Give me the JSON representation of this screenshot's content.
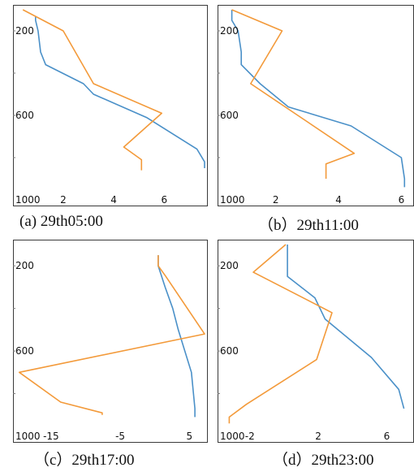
{
  "colors": {
    "blue": "#4a90c8",
    "orange": "#f39a3a",
    "frame": "#3a3a3a",
    "tickmark": "#777777"
  },
  "chart_data": [
    {
      "type": "line",
      "caption": "(a) 29th05:00",
      "ylim": [
        1000,
        100
      ],
      "xlim": [
        0.2,
        7.6
      ],
      "y_ticks": [
        200,
        600,
        1000
      ],
      "x_ticks": [
        2,
        4,
        6
      ],
      "series": [
        {
          "color": "blue",
          "points": [
            [
              0.9,
              130
            ],
            [
              0.9,
              150
            ],
            [
              1.0,
              200
            ],
            [
              1.1,
              300
            ],
            [
              1.3,
              360
            ],
            [
              2.8,
              450
            ],
            [
              3.2,
              500
            ],
            [
              5.3,
              610
            ],
            [
              7.3,
              760
            ],
            [
              7.6,
              820
            ],
            [
              7.6,
              850
            ]
          ]
        },
        {
          "color": "orange",
          "points": [
            [
              0.4,
              100
            ],
            [
              2.0,
              200
            ],
            [
              3.2,
              450
            ],
            [
              5.9,
              590
            ],
            [
              4.4,
              750
            ],
            [
              5.1,
              810
            ],
            [
              5.1,
              860
            ]
          ]
        }
      ]
    },
    {
      "type": "line",
      "caption": "（b）29th11:00",
      "ylim": [
        1000,
        100
      ],
      "xlim": [
        0.3,
        6.3
      ],
      "y_ticks": [
        200,
        600,
        1000
      ],
      "x_ticks": [
        2,
        4,
        6
      ],
      "series": [
        {
          "color": "blue",
          "points": [
            [
              0.6,
              100
            ],
            [
              0.6,
              150
            ],
            [
              0.8,
              200
            ],
            [
              0.9,
              300
            ],
            [
              0.9,
              360
            ],
            [
              1.5,
              450
            ],
            [
              2.4,
              560
            ],
            [
              4.4,
              650
            ],
            [
              6.0,
              800
            ],
            [
              6.1,
              900
            ],
            [
              6.1,
              940
            ]
          ]
        },
        {
          "color": "orange",
          "points": [
            [
              0.6,
              100
            ],
            [
              2.2,
              200
            ],
            [
              1.2,
              450
            ],
            [
              2.7,
              600
            ],
            [
              4.5,
              780
            ],
            [
              3.6,
              830
            ],
            [
              3.6,
              900
            ]
          ]
        }
      ]
    },
    {
      "type": "line",
      "caption": "（c）29th17:00",
      "ylim": [
        1000,
        100
      ],
      "xlim": [
        -19.8,
        7.2
      ],
      "y_ticks": [
        200,
        600,
        1000
      ],
      "x_ticks": [
        -15,
        -5,
        5
      ],
      "series": [
        {
          "color": "blue",
          "points": [
            [
              0.5,
              150
            ],
            [
              0.5,
              200
            ],
            [
              1.5,
              300
            ],
            [
              2.6,
              400
            ],
            [
              3.4,
              500
            ],
            [
              5.3,
              700
            ],
            [
              5.8,
              870
            ],
            [
              5.8,
              910
            ]
          ]
        },
        {
          "color": "orange",
          "points": [
            [
              0.5,
              150
            ],
            [
              0.5,
              200
            ],
            [
              1.6,
              250
            ],
            [
              7.2,
              520
            ],
            [
              -19.6,
              700
            ],
            [
              -13.6,
              840
            ],
            [
              -7.6,
              890
            ],
            [
              -7.6,
              900
            ]
          ]
        }
      ]
    },
    {
      "type": "line",
      "caption": "（d）29th23:00",
      "ylim": [
        1000,
        100
      ],
      "xlim": [
        -3.6,
        7.4
      ],
      "y_ticks": [
        200,
        600,
        1000
      ],
      "x_ticks": [
        -2,
        2,
        6
      ],
      "series": [
        {
          "color": "blue",
          "points": [
            [
              0.2,
              100
            ],
            [
              0.2,
              250
            ],
            [
              1.8,
              350
            ],
            [
              2.4,
              450
            ],
            [
              5.1,
              630
            ],
            [
              6.7,
              780
            ],
            [
              7.0,
              870
            ]
          ]
        },
        {
          "color": "orange",
          "points": [
            [
              0.1,
              100
            ],
            [
              -1.8,
              230
            ],
            [
              2.8,
              420
            ],
            [
              1.9,
              640
            ],
            [
              -2.2,
              850
            ],
            [
              -3.2,
              910
            ],
            [
              -3.2,
              940
            ]
          ]
        }
      ]
    }
  ]
}
